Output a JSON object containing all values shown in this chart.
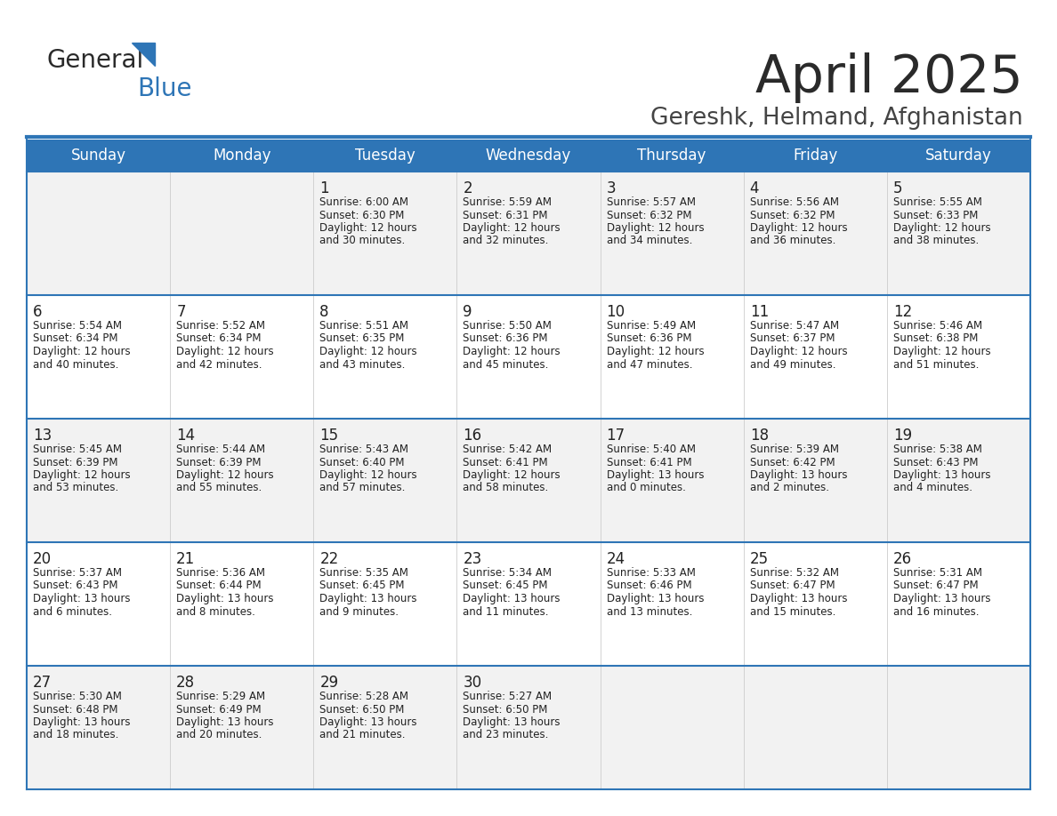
{
  "title": "April 2025",
  "subtitle": "Gereshk, Helmand, Afghanistan",
  "days_of_week": [
    "Sunday",
    "Monday",
    "Tuesday",
    "Wednesday",
    "Thursday",
    "Friday",
    "Saturday"
  ],
  "header_bg_color": "#2E75B6",
  "header_text_color": "#FFFFFF",
  "row_colors": [
    "#F2F2F2",
    "#FFFFFF"
  ],
  "border_color": "#2E75B6",
  "cell_border_color": "#B0C4D8",
  "text_color": "#222222",
  "title_color": "#2A2A2A",
  "subtitle_color": "#444444",
  "calendar_data": [
    [
      {
        "day": "",
        "lines": []
      },
      {
        "day": "",
        "lines": []
      },
      {
        "day": "1",
        "lines": [
          "Sunrise: 6:00 AM",
          "Sunset: 6:30 PM",
          "Daylight: 12 hours",
          "and 30 minutes."
        ]
      },
      {
        "day": "2",
        "lines": [
          "Sunrise: 5:59 AM",
          "Sunset: 6:31 PM",
          "Daylight: 12 hours",
          "and 32 minutes."
        ]
      },
      {
        "day": "3",
        "lines": [
          "Sunrise: 5:57 AM",
          "Sunset: 6:32 PM",
          "Daylight: 12 hours",
          "and 34 minutes."
        ]
      },
      {
        "day": "4",
        "lines": [
          "Sunrise: 5:56 AM",
          "Sunset: 6:32 PM",
          "Daylight: 12 hours",
          "and 36 minutes."
        ]
      },
      {
        "day": "5",
        "lines": [
          "Sunrise: 5:55 AM",
          "Sunset: 6:33 PM",
          "Daylight: 12 hours",
          "and 38 minutes."
        ]
      }
    ],
    [
      {
        "day": "6",
        "lines": [
          "Sunrise: 5:54 AM",
          "Sunset: 6:34 PM",
          "Daylight: 12 hours",
          "and 40 minutes."
        ]
      },
      {
        "day": "7",
        "lines": [
          "Sunrise: 5:52 AM",
          "Sunset: 6:34 PM",
          "Daylight: 12 hours",
          "and 42 minutes."
        ]
      },
      {
        "day": "8",
        "lines": [
          "Sunrise: 5:51 AM",
          "Sunset: 6:35 PM",
          "Daylight: 12 hours",
          "and 43 minutes."
        ]
      },
      {
        "day": "9",
        "lines": [
          "Sunrise: 5:50 AM",
          "Sunset: 6:36 PM",
          "Daylight: 12 hours",
          "and 45 minutes."
        ]
      },
      {
        "day": "10",
        "lines": [
          "Sunrise: 5:49 AM",
          "Sunset: 6:36 PM",
          "Daylight: 12 hours",
          "and 47 minutes."
        ]
      },
      {
        "day": "11",
        "lines": [
          "Sunrise: 5:47 AM",
          "Sunset: 6:37 PM",
          "Daylight: 12 hours",
          "and 49 minutes."
        ]
      },
      {
        "day": "12",
        "lines": [
          "Sunrise: 5:46 AM",
          "Sunset: 6:38 PM",
          "Daylight: 12 hours",
          "and 51 minutes."
        ]
      }
    ],
    [
      {
        "day": "13",
        "lines": [
          "Sunrise: 5:45 AM",
          "Sunset: 6:39 PM",
          "Daylight: 12 hours",
          "and 53 minutes."
        ]
      },
      {
        "day": "14",
        "lines": [
          "Sunrise: 5:44 AM",
          "Sunset: 6:39 PM",
          "Daylight: 12 hours",
          "and 55 minutes."
        ]
      },
      {
        "day": "15",
        "lines": [
          "Sunrise: 5:43 AM",
          "Sunset: 6:40 PM",
          "Daylight: 12 hours",
          "and 57 minutes."
        ]
      },
      {
        "day": "16",
        "lines": [
          "Sunrise: 5:42 AM",
          "Sunset: 6:41 PM",
          "Daylight: 12 hours",
          "and 58 minutes."
        ]
      },
      {
        "day": "17",
        "lines": [
          "Sunrise: 5:40 AM",
          "Sunset: 6:41 PM",
          "Daylight: 13 hours",
          "and 0 minutes."
        ]
      },
      {
        "day": "18",
        "lines": [
          "Sunrise: 5:39 AM",
          "Sunset: 6:42 PM",
          "Daylight: 13 hours",
          "and 2 minutes."
        ]
      },
      {
        "day": "19",
        "lines": [
          "Sunrise: 5:38 AM",
          "Sunset: 6:43 PM",
          "Daylight: 13 hours",
          "and 4 minutes."
        ]
      }
    ],
    [
      {
        "day": "20",
        "lines": [
          "Sunrise: 5:37 AM",
          "Sunset: 6:43 PM",
          "Daylight: 13 hours",
          "and 6 minutes."
        ]
      },
      {
        "day": "21",
        "lines": [
          "Sunrise: 5:36 AM",
          "Sunset: 6:44 PM",
          "Daylight: 13 hours",
          "and 8 minutes."
        ]
      },
      {
        "day": "22",
        "lines": [
          "Sunrise: 5:35 AM",
          "Sunset: 6:45 PM",
          "Daylight: 13 hours",
          "and 9 minutes."
        ]
      },
      {
        "day": "23",
        "lines": [
          "Sunrise: 5:34 AM",
          "Sunset: 6:45 PM",
          "Daylight: 13 hours",
          "and 11 minutes."
        ]
      },
      {
        "day": "24",
        "lines": [
          "Sunrise: 5:33 AM",
          "Sunset: 6:46 PM",
          "Daylight: 13 hours",
          "and 13 minutes."
        ]
      },
      {
        "day": "25",
        "lines": [
          "Sunrise: 5:32 AM",
          "Sunset: 6:47 PM",
          "Daylight: 13 hours",
          "and 15 minutes."
        ]
      },
      {
        "day": "26",
        "lines": [
          "Sunrise: 5:31 AM",
          "Sunset: 6:47 PM",
          "Daylight: 13 hours",
          "and 16 minutes."
        ]
      }
    ],
    [
      {
        "day": "27",
        "lines": [
          "Sunrise: 5:30 AM",
          "Sunset: 6:48 PM",
          "Daylight: 13 hours",
          "and 18 minutes."
        ]
      },
      {
        "day": "28",
        "lines": [
          "Sunrise: 5:29 AM",
          "Sunset: 6:49 PM",
          "Daylight: 13 hours",
          "and 20 minutes."
        ]
      },
      {
        "day": "29",
        "lines": [
          "Sunrise: 5:28 AM",
          "Sunset: 6:50 PM",
          "Daylight: 13 hours",
          "and 21 minutes."
        ]
      },
      {
        "day": "30",
        "lines": [
          "Sunrise: 5:27 AM",
          "Sunset: 6:50 PM",
          "Daylight: 13 hours",
          "and 23 minutes."
        ]
      },
      {
        "day": "",
        "lines": []
      },
      {
        "day": "",
        "lines": []
      },
      {
        "day": "",
        "lines": []
      }
    ]
  ]
}
